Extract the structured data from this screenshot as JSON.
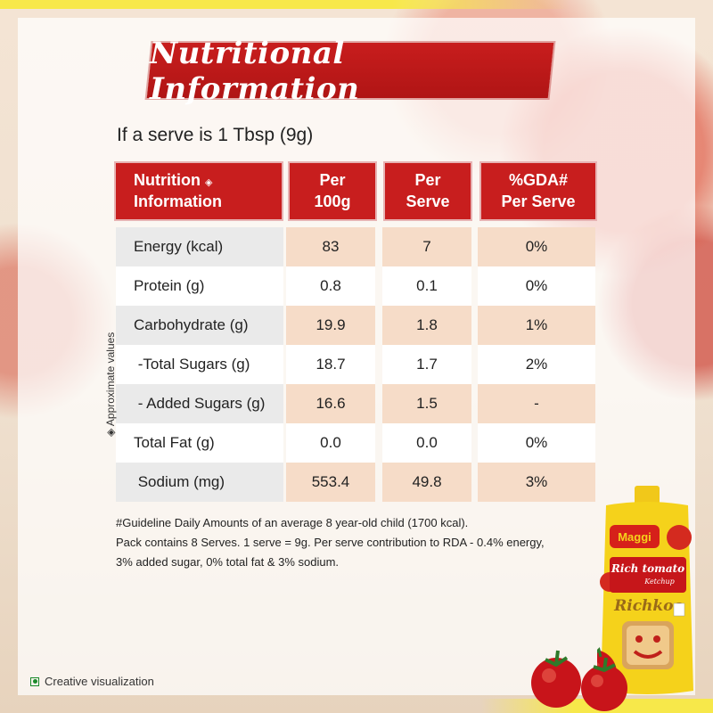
{
  "title": "Nutritional Information",
  "serve_line": "If a serve is 1 Tbsp (9g)",
  "headers": {
    "nutrition_line1": "Nutrition",
    "nutrition_mark": "◈",
    "nutrition_line2": "Information",
    "per100_line1": "Per",
    "per100_line2": "100g",
    "perserve_line1": "Per",
    "perserve_line2": "Serve",
    "gda_line1": "%GDA#",
    "gda_line2": "Per Serve"
  },
  "rows": [
    {
      "label": "Energy (kcal)",
      "per100": "83",
      "perserve": "7",
      "gda": "0%"
    },
    {
      "label": "Protein (g)",
      "per100": "0.8",
      "perserve": "0.1",
      "gda": "0%"
    },
    {
      "label": "Carbohydrate (g)",
      "per100": "19.9",
      "perserve": "1.8",
      "gda": "1%"
    },
    {
      "label": " -Total Sugars (g)",
      "per100": "18.7",
      "perserve": "1.7",
      "gda": "2%"
    },
    {
      "label": " - Added Sugars (g)",
      "per100": "16.6",
      "perserve": "1.5",
      "gda": "-"
    },
    {
      "label": "Total Fat (g)",
      "per100": "0.0",
      "perserve": "0.0",
      "gda": "0%"
    },
    {
      "label": " Sodium (mg)",
      "per100": "553.4",
      "perserve": "49.8",
      "gda": "3%"
    }
  ],
  "side_note": "◈ Approximate values",
  "footnotes": {
    "line1": "#Guideline Daily Amounts of an average 8 year-old child (1700 kcal).",
    "line2": "Pack contains 8 Serves. 1 serve = 9g. Per serve contribution to RDA - 0.4% energy,",
    "line3": "3% added sugar, 0% total fat & 3% sodium."
  },
  "creative_note": "Creative visualization",
  "pack": {
    "brand": "Maggi",
    "product_line1": "Rich tomato",
    "product_line2": "Ketchup",
    "product_name": "Richkoo"
  },
  "colors": {
    "header_red": "#c81e1e",
    "peach": "#f6dcc8",
    "pack_yellow": "#f5d21b",
    "veg_green": "#1a8a2a"
  },
  "icons": [
    "veg-mark-icon",
    "approximate-diamond-icon"
  ]
}
